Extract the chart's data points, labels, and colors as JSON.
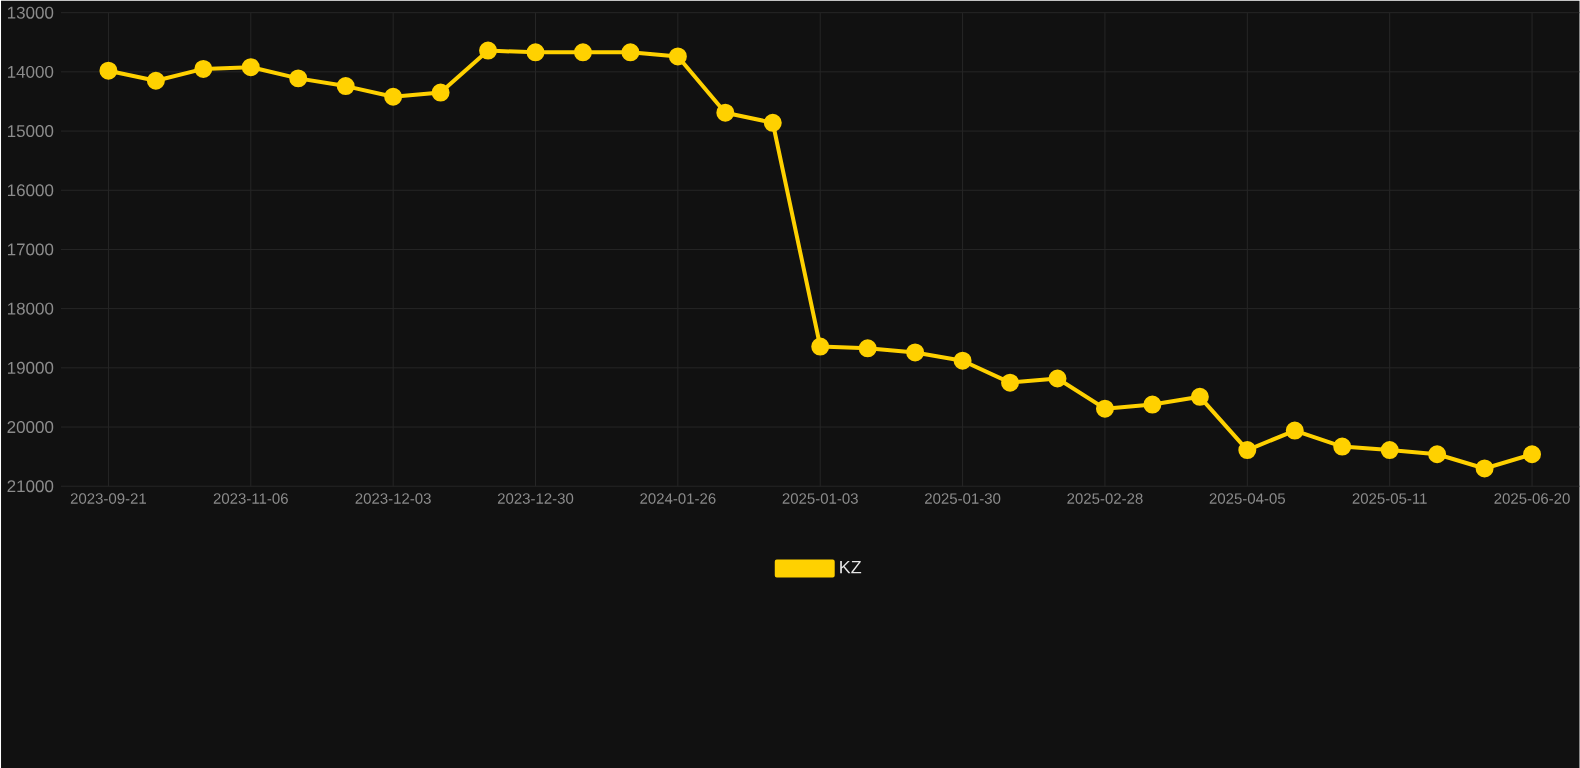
{
  "chart_data": {
    "type": "line",
    "categories": [
      "2023-09-21",
      null,
      null,
      "2023-11-06",
      null,
      null,
      "2023-12-03",
      null,
      null,
      "2023-12-30",
      null,
      null,
      "2024-01-26",
      null,
      null,
      "2025-01-03",
      null,
      null,
      "2025-01-30",
      null,
      null,
      "2025-02-28",
      null,
      null,
      "2025-04-05",
      null,
      null,
      "2025-05-11",
      null,
      null,
      "2025-06-20"
    ],
    "series": [
      {
        "name": "KZ",
        "color": "#ffd100",
        "values": [
          13980,
          14150,
          13950,
          13920,
          14110,
          14240,
          14420,
          14350,
          13640,
          13670,
          13670,
          13670,
          13740,
          14690,
          14860,
          18640,
          18670,
          18740,
          18880,
          19250,
          19180,
          19690,
          19620,
          19490,
          20390,
          20060,
          20330,
          20390,
          20460,
          20700,
          20460
        ]
      }
    ],
    "ylim": [
      21000,
      13000
    ],
    "yticks": [
      13000,
      14000,
      15000,
      16000,
      17000,
      18000,
      19000,
      20000,
      21000
    ],
    "grid": true,
    "legend": "bottom",
    "marker": "circle",
    "line_style": "solid"
  }
}
